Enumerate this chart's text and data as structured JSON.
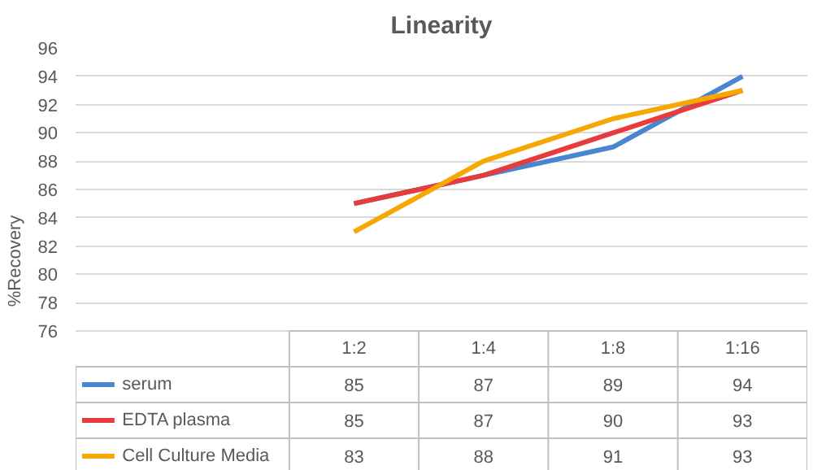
{
  "chart_data": {
    "type": "line",
    "title": "Linearity",
    "ylabel": "%Recovery",
    "categories": [
      "1:2",
      "1:4",
      "1:8",
      "1:16"
    ],
    "series": [
      {
        "name": "serum",
        "color": "#4a86d0",
        "values": [
          85,
          87,
          89,
          94
        ]
      },
      {
        "name": "EDTA plasma",
        "color": "#e83c3c",
        "values": [
          85,
          87,
          90,
          93
        ]
      },
      {
        "name": "Cell Culture Media",
        "color": "#f5a800",
        "values": [
          83,
          88,
          91,
          93
        ]
      }
    ],
    "ylim": [
      76,
      96
    ],
    "yticks": [
      76,
      78,
      80,
      82,
      84,
      86,
      88,
      90,
      92,
      94,
      96
    ],
    "grid": "y",
    "legend": "bottom",
    "data_labels": true,
    "marker": "none",
    "line_style": "solid"
  }
}
